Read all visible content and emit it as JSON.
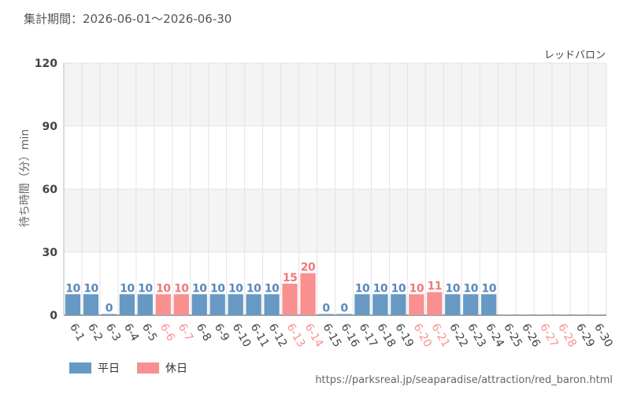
{
  "header": {
    "period": "集計期間：2026-06-01～2026-06-30"
  },
  "legend": {
    "weekday": "平日",
    "holiday": "休日"
  },
  "source_url": "https://parksreal.jp/seaparadise/attraction/red_baron.html",
  "colors": {
    "weekday": "#6899c5",
    "holiday": "#f89090",
    "weekday_label": "#5b87b8",
    "holiday_label": "#f07878"
  },
  "chart_data": {
    "type": "bar",
    "title": "レッドバロン",
    "xlabel": "",
    "ylabel": "待ち時間（分）min",
    "ylim": [
      0,
      120
    ],
    "yticks": [
      0,
      30,
      60,
      90,
      120
    ],
    "grid": true,
    "legend_position": "bottom-left",
    "categories": [
      "6-1",
      "6-2",
      "6-3",
      "6-4",
      "6-5",
      "6-6",
      "6-7",
      "6-8",
      "6-9",
      "6-10",
      "6-11",
      "6-12",
      "6-13",
      "6-14",
      "6-15",
      "6-16",
      "6-17",
      "6-18",
      "6-19",
      "6-20",
      "6-21",
      "6-22",
      "6-23",
      "6-24",
      "6-25",
      "6-26",
      "6-27",
      "6-28",
      "6-29",
      "6-30"
    ],
    "values": [
      10,
      10,
      0,
      10,
      10,
      10,
      10,
      10,
      10,
      10,
      10,
      10,
      15,
      20,
      0,
      0,
      10,
      10,
      10,
      10,
      11,
      10,
      10,
      10,
      null,
      null,
      null,
      null,
      null,
      null
    ],
    "day_type": [
      "weekday",
      "weekday",
      "weekday",
      "weekday",
      "weekday",
      "holiday",
      "holiday",
      "weekday",
      "weekday",
      "weekday",
      "weekday",
      "weekday",
      "holiday",
      "holiday",
      "weekday",
      "weekday",
      "weekday",
      "weekday",
      "weekday",
      "holiday",
      "holiday",
      "weekday",
      "weekday",
      "weekday",
      "weekday",
      "weekday",
      "holiday",
      "holiday",
      "weekday",
      "weekday"
    ]
  }
}
